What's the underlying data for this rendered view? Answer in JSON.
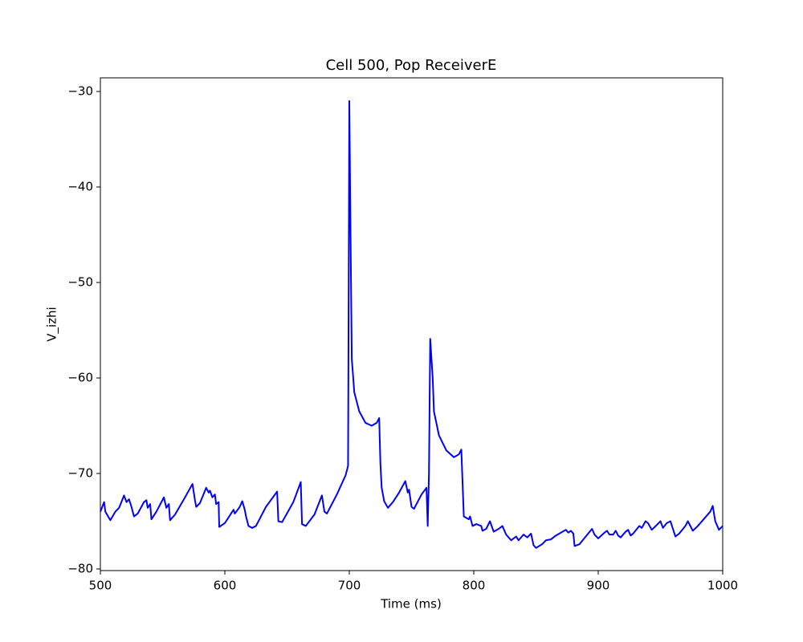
{
  "chart_data": {
    "type": "line",
    "title": "Cell 500, Pop ReceiverE",
    "x_label": "Time (ms)",
    "y_label": "V_izhi",
    "xlim": [
      500,
      1000
    ],
    "ylim": [
      -80.17,
      -28.57
    ],
    "xticks": [
      500,
      600,
      700,
      800,
      900,
      1000
    ],
    "yticks": [
      {
        "value": -80,
        "label": "−80"
      },
      {
        "value": -70,
        "label": "−70"
      },
      {
        "value": -60,
        "label": "−60"
      },
      {
        "value": -50,
        "label": "−50"
      },
      {
        "value": -40,
        "label": "−40"
      },
      {
        "value": -30,
        "label": "−30"
      }
    ],
    "series": [
      {
        "color": "#0000ff",
        "x": [
          500,
          503,
          504,
          508,
          512,
          515,
          519,
          521,
          523,
          525,
          527,
          530,
          535,
          537,
          538,
          540,
          541,
          545,
          551,
          553,
          555,
          556,
          560,
          568,
          574,
          576,
          577,
          580,
          585,
          587,
          588,
          590,
          592,
          593,
          595,
          595.5,
          600,
          605,
          607,
          608,
          612,
          614,
          616,
          617,
          619,
          622,
          625,
          633,
          642,
          643,
          646,
          655,
          661,
          662,
          665,
          672,
          678,
          680,
          682,
          690,
          697,
          699,
          700,
          701,
          702,
          704,
          708,
          713,
          718,
          722,
          724,
          725,
          726,
          728,
          731,
          735,
          740,
          745,
          747,
          748,
          750,
          752,
          758,
          762,
          763,
          764,
          765,
          767,
          768,
          772,
          778,
          784,
          788,
          790,
          791,
          792,
          796,
          797,
          799,
          802,
          806,
          807,
          810,
          813,
          816,
          820,
          823,
          826,
          830,
          834,
          836,
          840,
          843,
          846,
          848,
          850,
          855,
          858,
          862,
          866,
          870,
          874,
          876,
          878,
          880,
          881,
          885,
          895,
          897,
          900,
          905,
          907,
          909,
          912,
          914,
          916,
          918,
          922,
          924,
          926,
          928,
          933,
          935,
          938,
          940,
          943,
          947,
          950,
          952,
          955,
          958,
          960,
          962,
          965,
          970,
          972,
          976,
          980,
          990,
          992,
          994,
          997,
          1000
        ],
        "values": [
          -74.0,
          -73.0,
          -74.0,
          -74.9,
          -74.0,
          -73.6,
          -72.3,
          -73.0,
          -72.7,
          -73.5,
          -74.5,
          -74.2,
          -73.0,
          -72.8,
          -73.6,
          -73.2,
          -74.8,
          -74.0,
          -72.5,
          -73.6,
          -73.2,
          -74.9,
          -74.3,
          -72.5,
          -71.1,
          -72.8,
          -73.5,
          -73.1,
          -71.5,
          -72.0,
          -71.8,
          -72.5,
          -72.2,
          -73.2,
          -73.0,
          -75.6,
          -75.2,
          -74.2,
          -73.8,
          -74.2,
          -73.5,
          -72.9,
          -73.8,
          -74.5,
          -75.5,
          -75.7,
          -75.5,
          -73.5,
          -71.9,
          -75.0,
          -75.1,
          -73.0,
          -70.9,
          -75.3,
          -75.5,
          -74.3,
          -72.3,
          -74.0,
          -74.2,
          -72.2,
          -70.2,
          -69.2,
          -31.0,
          -45.0,
          -58.0,
          -61.5,
          -63.5,
          -64.7,
          -65.0,
          -64.7,
          -64.2,
          -69.0,
          -71.5,
          -72.9,
          -73.6,
          -73.0,
          -72.0,
          -70.8,
          -72.0,
          -71.7,
          -73.5,
          -73.7,
          -72.2,
          -71.5,
          -75.5,
          -70.0,
          -55.9,
          -60.0,
          -63.5,
          -66.0,
          -67.6,
          -68.3,
          -68.0,
          -67.5,
          -71.0,
          -74.5,
          -74.8,
          -74.5,
          -75.5,
          -75.3,
          -75.5,
          -76.0,
          -75.8,
          -75.0,
          -76.1,
          -75.8,
          -75.5,
          -76.4,
          -77.0,
          -76.6,
          -77.0,
          -76.4,
          -76.7,
          -76.3,
          -77.5,
          -77.8,
          -77.4,
          -77.0,
          -76.9,
          -76.5,
          -76.2,
          -75.9,
          -76.2,
          -76.0,
          -76.3,
          -77.6,
          -77.4,
          -75.8,
          -76.4,
          -76.8,
          -76.2,
          -76.0,
          -76.4,
          -76.4,
          -76.0,
          -76.5,
          -76.7,
          -76.1,
          -75.9,
          -76.5,
          -76.3,
          -75.5,
          -75.7,
          -75.0,
          -75.2,
          -75.9,
          -75.4,
          -75.0,
          -75.7,
          -75.2,
          -75.0,
          -75.8,
          -76.6,
          -76.3,
          -75.5,
          -75.0,
          -76.0,
          -75.5,
          -74.0,
          -73.4,
          -75.0,
          -75.9,
          -75.5
        ]
      }
    ]
  }
}
